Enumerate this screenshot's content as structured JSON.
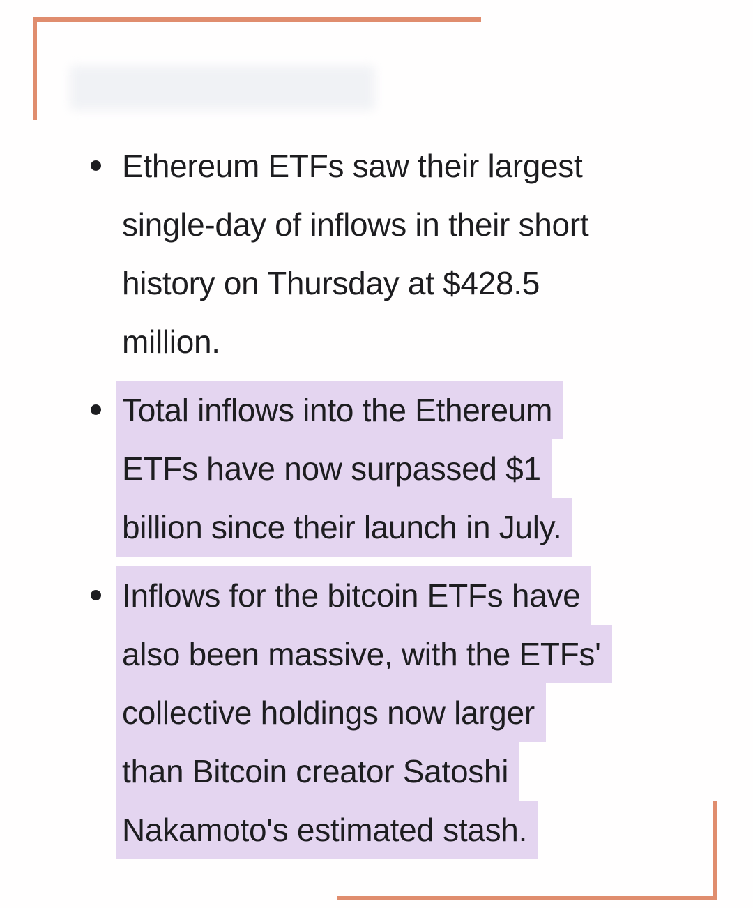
{
  "colors": {
    "accent": "#e08d6e",
    "highlight": "#e4d5f0",
    "text": "#1d1d20",
    "blur": "#eef0f4"
  },
  "content": {
    "bullets": [
      {
        "highlighted": false,
        "text": "Ethereum ETFs saw their largest single-day of inflows in their short history on Thursday at $428.5 million.",
        "lines": [
          "Ethereum ETFs saw their largest",
          "single-day of inflows in their short",
          "history on Thursday at $428.5",
          "million."
        ]
      },
      {
        "highlighted": true,
        "text": "Total inflows into the Ethereum ETFs have now surpassed $1 billion since their launch in July.",
        "lines": [
          "Total inflows into the Ethereum",
          "ETFs have now surpassed $1",
          "billion since their launch in July."
        ]
      },
      {
        "highlighted": true,
        "text": "Inflows for the bitcoin ETFs have also been massive, with the ETFs' collective holdings now larger than Bitcoin creator Satoshi Nakamoto's estimated stash.",
        "lines": [
          "Inflows for the bitcoin ETFs have",
          "also been massive, with the ETFs'",
          "collective holdings now larger",
          "than Bitcoin creator Satoshi",
          "Nakamoto's estimated stash."
        ]
      }
    ]
  }
}
